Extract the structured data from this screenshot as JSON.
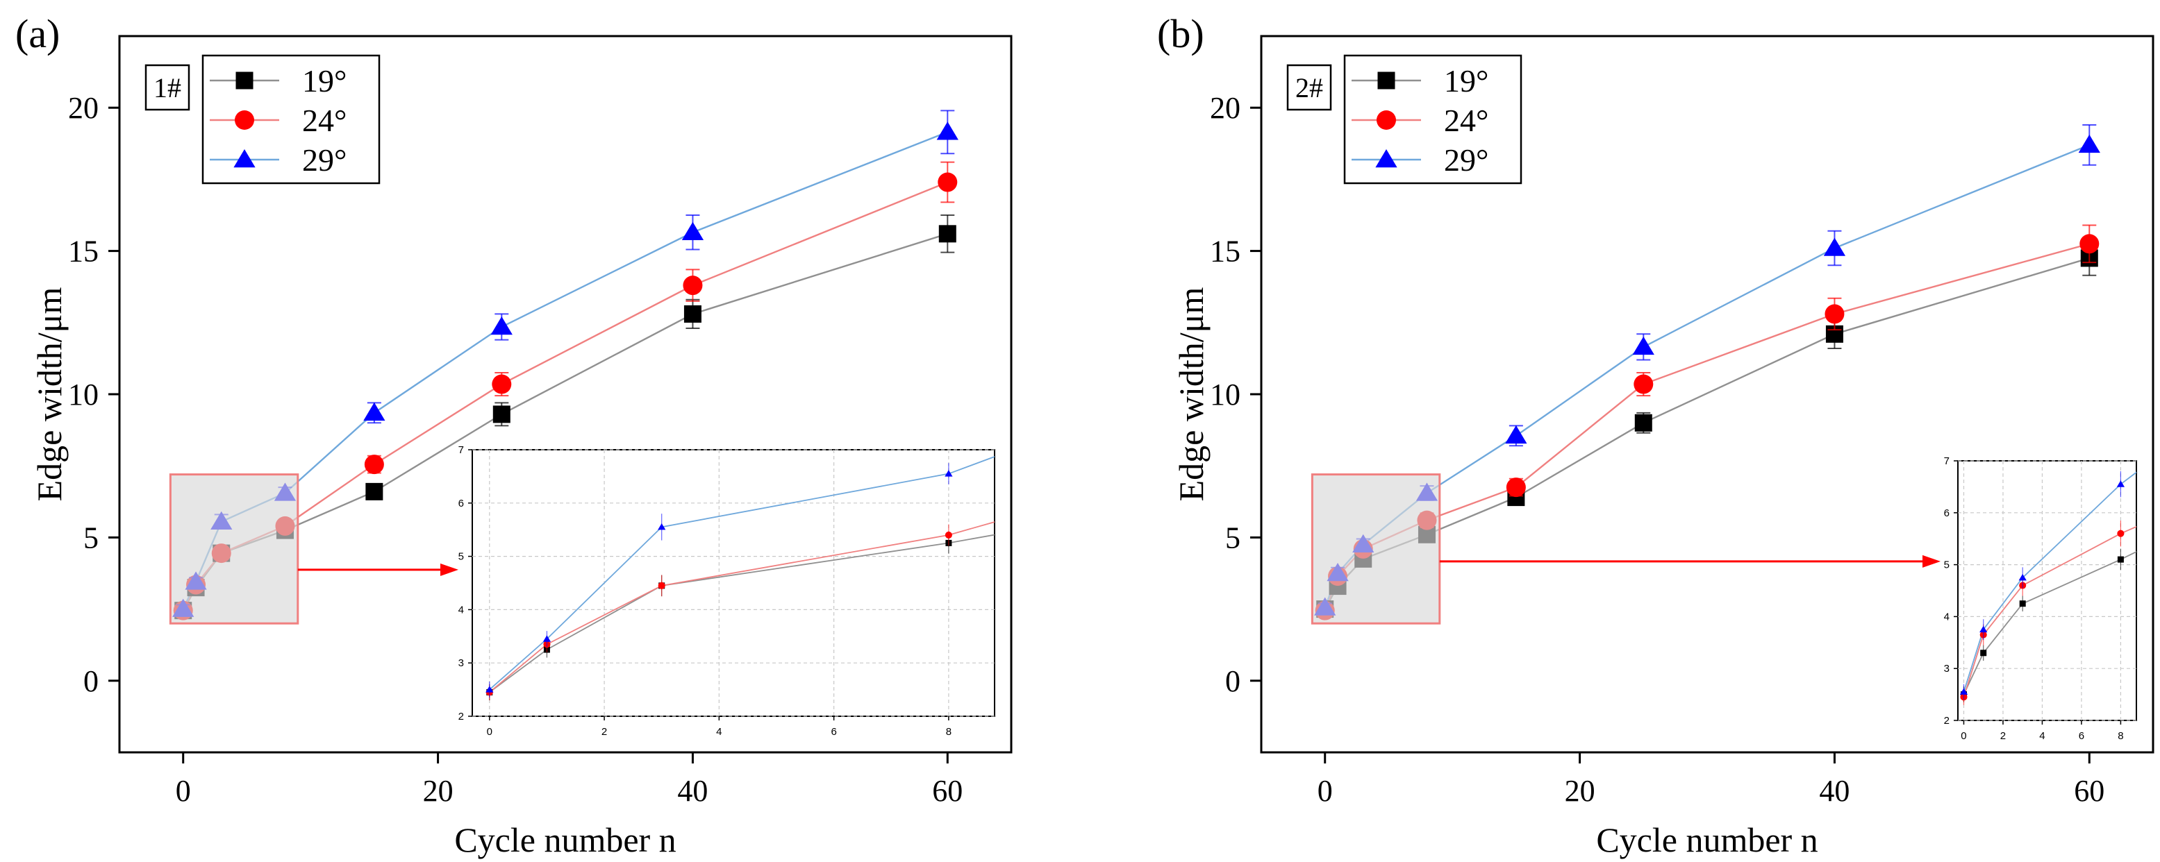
{
  "colors": {
    "s19": "#000000",
    "s24": "#ff0000",
    "s29": "#0000ff",
    "line19": "#909090",
    "line24": "#f08080",
    "line29": "#6fa8dc",
    "highlight_fill": "#d9d9d9",
    "highlight_stroke": "#f08080",
    "arrow": "#ff0000"
  },
  "chart_data": [
    {
      "type": "line",
      "panel_label": "(a)",
      "sample_label": "1#",
      "xlabel": "Cycle number n",
      "ylabel": "Edge width/μm",
      "xlim": [
        -5,
        65
      ],
      "ylim": [
        -2.5,
        22.5
      ],
      "xticks": [
        0,
        20,
        40,
        60
      ],
      "yticks": [
        0,
        5,
        10,
        15,
        20
      ],
      "x": [
        0,
        1,
        3,
        8,
        15,
        25,
        40,
        60
      ],
      "series": [
        {
          "name": "19°",
          "key": "s19",
          "marker": "square",
          "values": [
            2.45,
            3.25,
            4.45,
            5.25,
            6.6,
            9.3,
            12.8,
            15.6
          ],
          "errors": [
            0.15,
            0.15,
            0.2,
            0.2,
            0.25,
            0.4,
            0.5,
            0.65
          ]
        },
        {
          "name": "24°",
          "key": "s24",
          "marker": "circle",
          "values": [
            2.45,
            3.35,
            4.45,
            5.4,
            7.55,
            10.35,
            13.8,
            17.4
          ],
          "errors": [
            0.15,
            0.15,
            0.2,
            0.2,
            0.3,
            0.4,
            0.55,
            0.7
          ]
        },
        {
          "name": "29°",
          "key": "s29",
          "marker": "triangle",
          "values": [
            2.5,
            3.45,
            5.55,
            6.55,
            9.35,
            12.35,
            15.65,
            19.15
          ],
          "errors": [
            0.15,
            0.15,
            0.25,
            0.2,
            0.35,
            0.45,
            0.6,
            0.75
          ]
        }
      ],
      "inset": {
        "xlim": [
          -0.3,
          8.8
        ],
        "ylim": [
          2,
          7
        ],
        "xticks": [
          0,
          2,
          4,
          6,
          8
        ],
        "yticks": [
          2,
          3,
          4,
          5,
          6,
          7
        ],
        "x_range_shown": [
          0,
          8
        ]
      }
    },
    {
      "type": "line",
      "panel_label": "(b)",
      "sample_label": "2#",
      "xlabel": "Cycle number n",
      "ylabel": "Edge width/μm",
      "xlim": [
        -5,
        65
      ],
      "ylim": [
        -2.5,
        22.5
      ],
      "xticks": [
        0,
        20,
        40,
        60
      ],
      "yticks": [
        0,
        5,
        10,
        15,
        20
      ],
      "x": [
        0,
        1,
        3,
        8,
        15,
        25,
        40,
        60
      ],
      "series": [
        {
          "name": "19°",
          "key": "s19",
          "marker": "square",
          "values": [
            2.5,
            3.3,
            4.25,
            5.1,
            6.4,
            9.0,
            12.1,
            14.75
          ],
          "errors": [
            0.15,
            0.15,
            0.15,
            0.2,
            0.25,
            0.35,
            0.5,
            0.6
          ]
        },
        {
          "name": "24°",
          "key": "s24",
          "marker": "circle",
          "values": [
            2.45,
            3.65,
            4.6,
            5.6,
            6.75,
            10.35,
            12.8,
            15.25
          ],
          "errors": [
            0.15,
            0.2,
            0.2,
            0.25,
            0.3,
            0.4,
            0.55,
            0.65
          ]
        },
        {
          "name": "29°",
          "key": "s29",
          "marker": "triangle",
          "values": [
            2.55,
            3.75,
            4.75,
            6.55,
            8.55,
            11.65,
            15.1,
            18.7
          ],
          "errors": [
            0.15,
            0.2,
            0.2,
            0.25,
            0.35,
            0.45,
            0.6,
            0.7
          ]
        }
      ],
      "inset": {
        "xlim": [
          -0.3,
          8.8
        ],
        "ylim": [
          2,
          7
        ],
        "xticks": [
          0,
          2,
          4,
          6,
          8
        ],
        "yticks": [
          2,
          3,
          4,
          5,
          6,
          7
        ],
        "x_range_shown": [
          0,
          8
        ]
      }
    }
  ]
}
